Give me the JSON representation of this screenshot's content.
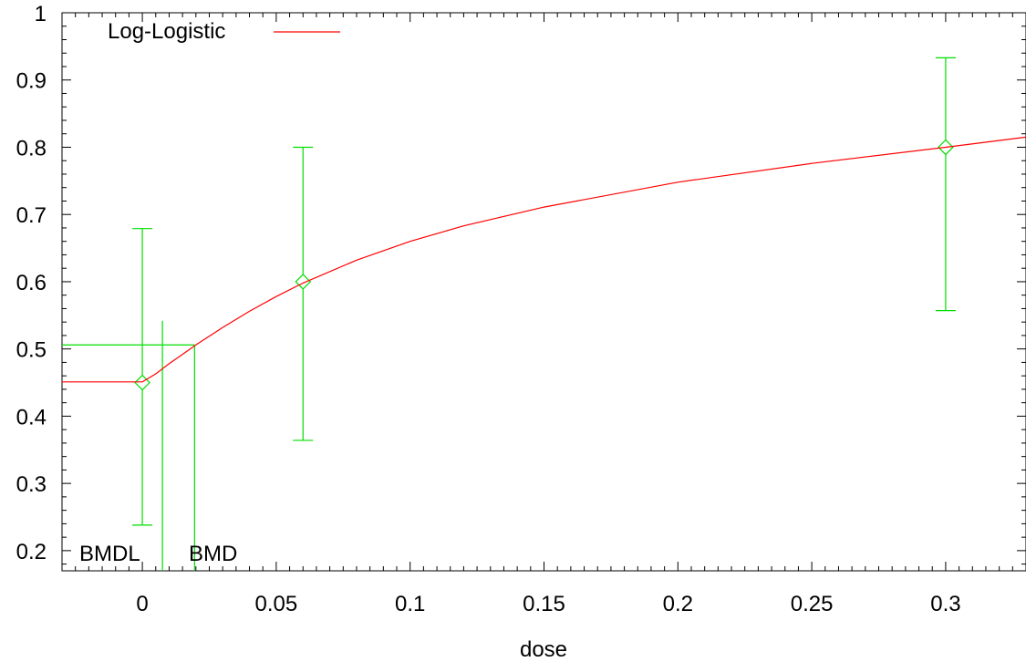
{
  "chart_data": {
    "type": "scatter",
    "title": "",
    "xlabel": "dose",
    "ylabel": "",
    "xlim": [
      -0.03,
      0.33
    ],
    "ylim": [
      0.17,
      1.0
    ],
    "x_ticks": [
      0,
      0.05,
      0.1,
      0.15,
      0.2,
      0.25,
      0.3
    ],
    "x_tick_labels": [
      "0",
      "0.05",
      "0.1",
      "0.15",
      "0.2",
      "0.25",
      "0.3"
    ],
    "y_ticks": [
      0.2,
      0.3,
      0.4,
      0.5,
      0.6,
      0.7,
      0.8,
      0.9,
      1.0
    ],
    "y_tick_labels": [
      "0.2",
      "0.3",
      "0.4",
      "0.5",
      "0.6",
      "0.7",
      "0.8",
      "0.9",
      "1"
    ],
    "grid": false,
    "legend_placement": "top-left",
    "legend": [
      {
        "name": "Log-Logistic",
        "color": "#ff0000"
      }
    ],
    "observations": [
      {
        "x": 0,
        "y": 0.45,
        "lower": 0.238,
        "upper": 0.679
      },
      {
        "x": 0.06,
        "y": 0.6,
        "lower": 0.364,
        "upper": 0.8
      },
      {
        "x": 0.3,
        "y": 0.8,
        "lower": 0.557,
        "upper": 0.933
      }
    ],
    "fitted_curve": {
      "name": "Log-Logistic",
      "color": "#ff0000",
      "x": [
        -0.03,
        0.0,
        0.005,
        0.01,
        0.015,
        0.02,
        0.03,
        0.04,
        0.05,
        0.06,
        0.08,
        0.1,
        0.12,
        0.15,
        0.2,
        0.25,
        0.3,
        0.33
      ],
      "y": [
        0.451,
        0.451,
        0.463,
        0.478,
        0.492,
        0.506,
        0.532,
        0.556,
        0.578,
        0.598,
        0.632,
        0.66,
        0.683,
        0.711,
        0.748,
        0.776,
        0.8,
        0.815
      ]
    },
    "bmr_level": 0.506,
    "bmd": {
      "label": "BMD",
      "x": 0.0195
    },
    "bmdl": {
      "label": "BMDL",
      "x": 0.0075,
      "top": 0.542
    },
    "colors": {
      "data": "#00dd00",
      "curve": "#ff0000",
      "axes": "#000000"
    }
  }
}
